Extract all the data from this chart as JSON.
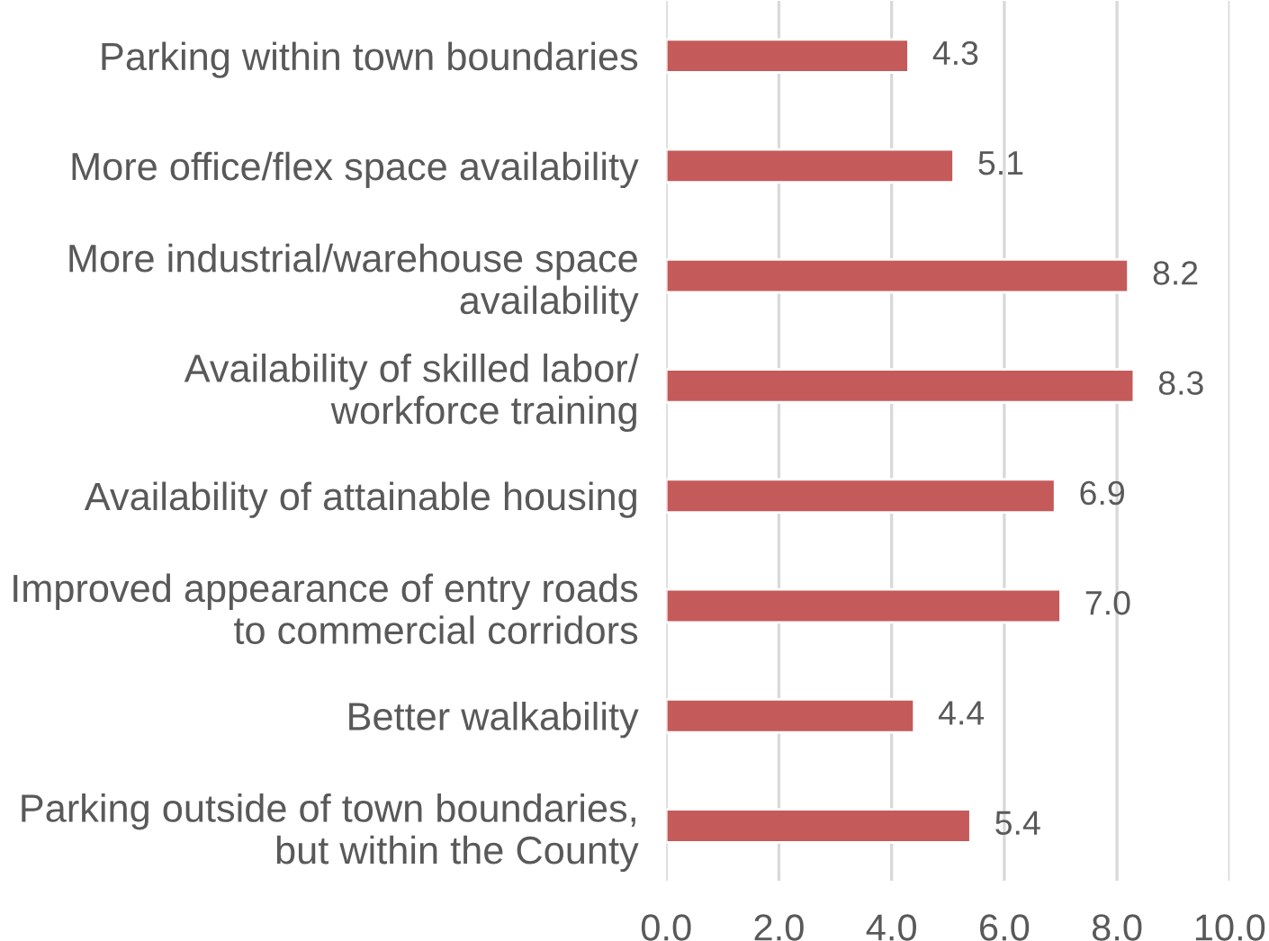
{
  "chart_data": {
    "type": "bar",
    "orientation": "horizontal",
    "categories": [
      "Parking within town boundaries",
      "More office/flex space availability",
      "More industrial/warehouse space\navailability",
      "Availability of skilled labor/\nworkforce training",
      "Availability of attainable housing",
      "Improved appearance of entry roads\nto commercial corridors",
      "Better walkability",
      "Parking outside of town boundaries,\nbut within the County"
    ],
    "values": [
      4.3,
      5.1,
      8.2,
      8.3,
      6.9,
      7.0,
      4.4,
      5.4
    ],
    "value_labels": [
      "4.3",
      "5.1",
      "8.2",
      "8.3",
      "6.9",
      "7.0",
      "4.4",
      "5.4"
    ],
    "color": "#c55a5a",
    "xlim": [
      0,
      10
    ],
    "xticks": [
      {
        "value": 0,
        "label": "0.0"
      },
      {
        "value": 2,
        "label": "2.0"
      },
      {
        "value": 4,
        "label": "4.0"
      },
      {
        "value": 6,
        "label": "6.0"
      },
      {
        "value": 8,
        "label": "8.0"
      },
      {
        "value": 10,
        "label": "10.0"
      }
    ],
    "grid": "x",
    "legend": false
  }
}
